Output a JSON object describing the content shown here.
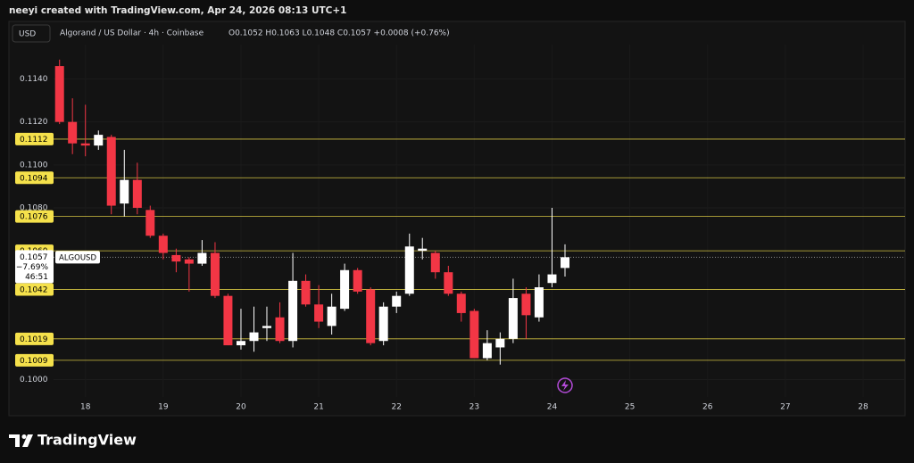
{
  "chart_data": {
    "type": "candlestick",
    "credit": "neeyi created with TradingView.com, Apr 24, 2026 08:13 UTC+1",
    "currency": "USD",
    "title": "Algorand / US Dollar · 4h · Coinbase",
    "ohlc_legend": "O0.1052 H0.1063 L0.1048 C0.1057 +0.0008 (+0.76%)",
    "brand": "TradingView",
    "symbol": "ALGOUSD",
    "up_color": "#ffffff",
    "down_color": "#f23645",
    "level_color": "#f5e14b",
    "grid": true,
    "x": [
      17.667,
      17.833,
      18,
      18.167,
      18.333,
      18.5,
      18.667,
      18.833,
      19,
      19.167,
      19.333,
      19.5,
      19.667,
      19.833,
      20,
      20.167,
      20.333,
      20.5,
      20.667,
      20.833,
      21,
      21.167,
      21.333,
      21.5,
      21.667,
      21.833,
      22,
      22.167,
      22.333,
      22.5,
      22.667,
      22.833,
      23,
      23.167,
      23.333,
      23.5,
      23.667,
      23.833,
      24,
      24.167
    ],
    "open": [
      0.1146,
      0.112,
      0.111,
      0.1109,
      0.1113,
      0.1082,
      0.1093,
      0.1079,
      0.1067,
      0.1058,
      0.1056,
      0.1054,
      0.1059,
      0.1039,
      0.1016,
      0.1018,
      0.1024,
      0.1029,
      0.1018,
      0.1046,
      0.1035,
      0.1025,
      0.1033,
      0.1051,
      0.1042,
      0.1018,
      0.1034,
      0.104,
      0.106,
      0.1059,
      0.105,
      0.104,
      0.1032,
      0.101,
      0.1015,
      0.1019,
      0.104,
      0.1029,
      0.1045,
      0.1052
    ],
    "high": [
      0.1149,
      0.1131,
      0.1128,
      0.1116,
      0.1114,
      0.1107,
      0.1101,
      0.1081,
      0.1068,
      0.1061,
      0.1057,
      0.1065,
      0.1064,
      0.104,
      0.1033,
      0.1034,
      0.1034,
      0.1036,
      0.1059,
      0.1049,
      0.1044,
      0.104,
      0.1054,
      0.1052,
      0.1043,
      0.1036,
      0.1041,
      0.1068,
      0.1066,
      0.106,
      0.1053,
      0.1041,
      0.1033,
      0.1023,
      0.1022,
      0.1047,
      0.1043,
      0.1049,
      0.108,
      0.1063
    ],
    "low": [
      0.1119,
      0.1105,
      0.1104,
      0.1107,
      0.1077,
      0.1076,
      0.1077,
      0.1066,
      0.1056,
      0.105,
      0.1041,
      0.1053,
      0.1038,
      0.1016,
      0.1014,
      0.1013,
      0.1018,
      0.1017,
      0.1015,
      0.1034,
      0.1024,
      0.1021,
      0.1032,
      0.104,
      0.1016,
      0.1016,
      0.1031,
      0.1039,
      0.1056,
      0.1047,
      0.1039,
      0.1027,
      0.101,
      0.1009,
      0.1007,
      0.1017,
      0.1019,
      0.1027,
      0.1043,
      0.1048
    ],
    "close": [
      0.112,
      0.111,
      0.1109,
      0.1114,
      0.1081,
      0.1093,
      0.108,
      0.1067,
      0.1059,
      0.1055,
      0.1054,
      0.1059,
      0.1039,
      0.1016,
      0.1018,
      0.1022,
      0.1025,
      0.1018,
      0.1046,
      0.1035,
      0.1027,
      0.1034,
      0.1051,
      0.1041,
      0.1017,
      0.1034,
      0.1039,
      0.1062,
      0.1061,
      0.105,
      0.104,
      0.1031,
      0.101,
      0.1017,
      0.1019,
      0.1038,
      0.103,
      0.1043,
      0.1049,
      0.1057
    ],
    "xlim": [
      17.59,
      28.54
    ],
    "xticks": [
      18,
      19,
      20,
      21,
      22,
      23,
      24,
      25,
      26,
      27,
      28
    ],
    "ylim": [
      0.0994,
      0.1156
    ],
    "yticks": [
      {
        "value": 0.114,
        "label": "0.1140"
      },
      {
        "value": 0.112,
        "label": "0.1120"
      },
      {
        "value": 0.11,
        "label": "0.1100"
      },
      {
        "value": 0.108,
        "label": "0.1080"
      },
      {
        "value": 0.1,
        "label": "0.1000"
      }
    ],
    "levels": [
      0.1112,
      0.1094,
      0.1076,
      {
        "value": 0.106,
        "label": "0.1060"
      },
      0.1042,
      0.1019,
      0.1009
    ],
    "last_price": 0.1057,
    "last_change": "−7.69%",
    "countdown": "46:51"
  }
}
